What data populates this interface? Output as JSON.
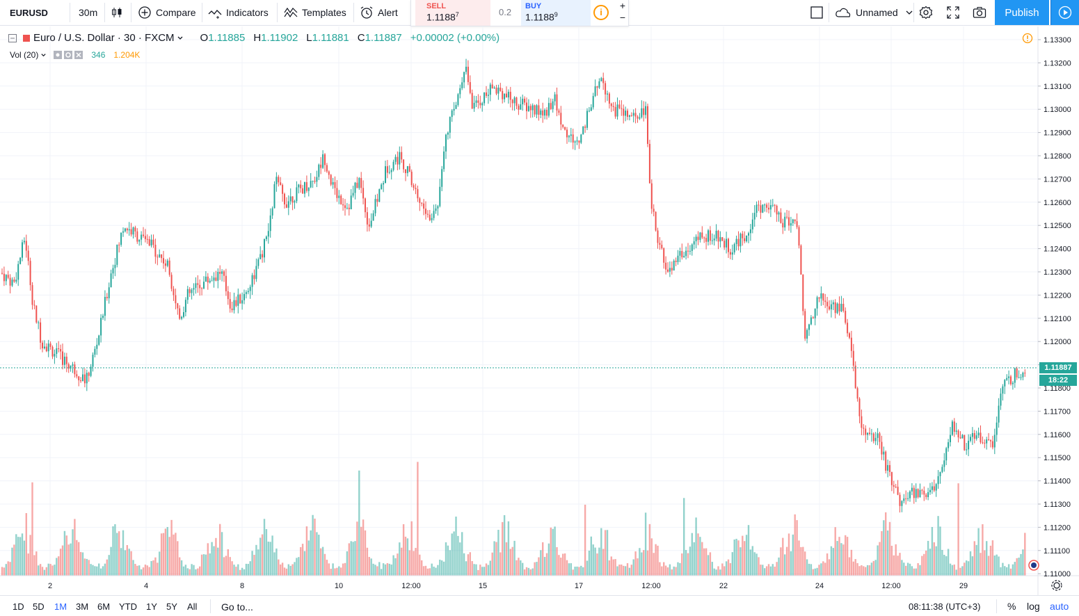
{
  "toolbar": {
    "symbol": "EURUSD",
    "interval": "30m",
    "compare": "Compare",
    "indicators": "Indicators",
    "templates": "Templates",
    "alert": "Alert",
    "layout_name": "Unnamed",
    "publish": "Publish"
  },
  "trade": {
    "sell_label": "SELL",
    "sell_price": "1.1188",
    "sell_sup": "7",
    "spread": "0.2",
    "buy_label": "BUY",
    "buy_price": "1.1188",
    "buy_sup": "9",
    "warn": "i",
    "plus": "+",
    "minus": "−"
  },
  "legend": {
    "title": "Euro / U.S. Dollar · 30 · FXCM",
    "o_label": "O",
    "o": "1.11885",
    "h_label": "H",
    "h": "1.11902",
    "l_label": "L",
    "l": "1.11881",
    "c_label": "C",
    "c": "1.11887",
    "change": "+0.00002 (+0.00%)",
    "vol_label": "Vol (20)",
    "vol_value": "346",
    "vol_ma": "1.204K"
  },
  "chart_data": {
    "type": "candlestick",
    "symbol": "EURUSD",
    "ylim": [
      1.11,
      1.1335
    ],
    "y_ticks": [
      "1.13300",
      "1.13200",
      "1.13100",
      "1.13000",
      "1.12900",
      "1.12800",
      "1.12700",
      "1.12600",
      "1.12500",
      "1.12400",
      "1.12300",
      "1.12200",
      "1.12100",
      "1.12000",
      "1.11900",
      "1.11800",
      "1.11700",
      "1.11600",
      "1.11500",
      "1.11400",
      "1.11300",
      "1.11200",
      "1.11100",
      "1.11000"
    ],
    "x_ticks": [
      "2",
      "4",
      "8",
      "10",
      "12:00",
      "15",
      "17",
      "12:00",
      "22",
      "24",
      "12:00",
      "29"
    ],
    "close_path": [
      [
        0,
        1.123
      ],
      [
        20,
        1.1225
      ],
      [
        36,
        1.1245
      ],
      [
        48,
        1.1215
      ],
      [
        60,
        1.12
      ],
      [
        80,
        1.1195
      ],
      [
        100,
        1.119
      ],
      [
        124,
        1.1183
      ],
      [
        140,
        1.12
      ],
      [
        160,
        1.123
      ],
      [
        178,
        1.125
      ],
      [
        200,
        1.1245
      ],
      [
        222,
        1.124
      ],
      [
        242,
        1.1232
      ],
      [
        258,
        1.121
      ],
      [
        270,
        1.122
      ],
      [
        290,
        1.1225
      ],
      [
        318,
        1.123
      ],
      [
        332,
        1.1215
      ],
      [
        352,
        1.122
      ],
      [
        374,
        1.1235
      ],
      [
        388,
        1.125
      ],
      [
        396,
        1.127
      ],
      [
        410,
        1.126
      ],
      [
        430,
        1.1265
      ],
      [
        452,
        1.127
      ],
      [
        466,
        1.128
      ],
      [
        480,
        1.1265
      ],
      [
        500,
        1.1258
      ],
      [
        516,
        1.127
      ],
      [
        530,
        1.125
      ],
      [
        536,
        1.1255
      ],
      [
        556,
        1.1275
      ],
      [
        576,
        1.128
      ],
      [
        590,
        1.127
      ],
      [
        604,
        1.126
      ],
      [
        618,
        1.1252
      ],
      [
        630,
        1.126
      ],
      [
        640,
        1.129
      ],
      [
        654,
        1.13
      ],
      [
        668,
        1.132
      ],
      [
        680,
        1.13
      ],
      [
        694,
        1.1305
      ],
      [
        712,
        1.131
      ],
      [
        730,
        1.1305
      ],
      [
        748,
        1.1302
      ],
      [
        766,
        1.13
      ],
      [
        782,
        1.1298
      ],
      [
        796,
        1.1305
      ],
      [
        812,
        1.129
      ],
      [
        830,
        1.1285
      ],
      [
        848,
        1.13
      ],
      [
        864,
        1.1315
      ],
      [
        880,
        1.13
      ],
      [
        898,
        1.1298
      ],
      [
        914,
        1.1295
      ],
      [
        928,
        1.13
      ],
      [
        934,
        1.1265
      ],
      [
        944,
        1.1245
      ],
      [
        958,
        1.123
      ],
      [
        974,
        1.1235
      ],
      [
        990,
        1.124
      ],
      [
        1010,
        1.1245
      ],
      [
        1030,
        1.1245
      ],
      [
        1050,
        1.124
      ],
      [
        1070,
        1.1245
      ],
      [
        1090,
        1.1258
      ],
      [
        1110,
        1.1258
      ],
      [
        1126,
        1.125
      ],
      [
        1140,
        1.1255
      ],
      [
        1150,
        1.124
      ],
      [
        1156,
        1.12
      ],
      [
        1166,
        1.121
      ],
      [
        1176,
        1.122
      ],
      [
        1192,
        1.1215
      ],
      [
        1210,
        1.1215
      ],
      [
        1222,
        1.12
      ],
      [
        1232,
        1.1175
      ],
      [
        1242,
        1.116
      ],
      [
        1262,
        1.1158
      ],
      [
        1280,
        1.114
      ],
      [
        1296,
        1.113
      ],
      [
        1312,
        1.1135
      ],
      [
        1332,
        1.1135
      ],
      [
        1350,
        1.114
      ],
      [
        1360,
        1.1155
      ],
      [
        1370,
        1.1165
      ],
      [
        1388,
        1.1155
      ],
      [
        1406,
        1.116
      ],
      [
        1426,
        1.1155
      ],
      [
        1440,
        1.118
      ],
      [
        1456,
        1.1185
      ],
      [
        1476,
        1.11887
      ]
    ],
    "last_price": "1.11887",
    "countdown": "18:22"
  },
  "bottom": {
    "ranges": [
      "1D",
      "5D",
      "1M",
      "3M",
      "6M",
      "YTD",
      "1Y",
      "5Y",
      "All"
    ],
    "active_range": "1M",
    "goto": "Go to...",
    "clock": "08:11:38 (UTC+3)",
    "percent": "%",
    "log": "log",
    "auto": "auto"
  },
  "colors": {
    "up": "#26a69a",
    "down": "#ef5350",
    "accent": "#2196f3",
    "grid": "#f0f3fa"
  }
}
